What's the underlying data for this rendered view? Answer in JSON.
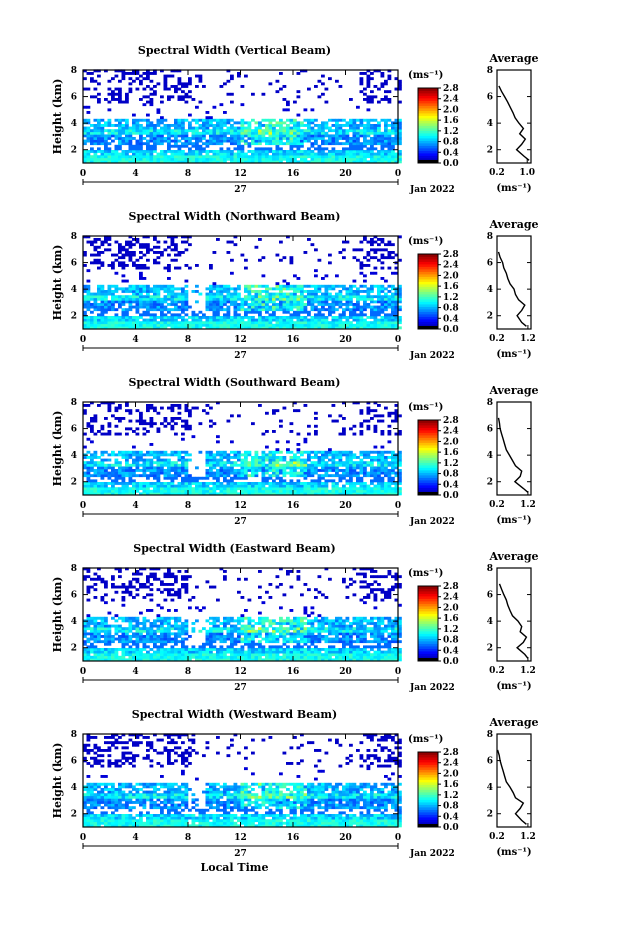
{
  "figure": {
    "xlabel_common": "Local Time"
  },
  "chart_data": [
    {
      "type": "heatmap",
      "title": "Spectral Width (Vertical Beam)",
      "xlabel": "",
      "ylabel": "Height (km)",
      "x_ticks": [
        "0",
        "4",
        "8",
        "12",
        "16",
        "20",
        "0"
      ],
      "y_ticks": [
        "2",
        "4",
        "6",
        "8"
      ],
      "xlim": [
        0,
        24
      ],
      "ylim": [
        1,
        8
      ],
      "date_label": "27",
      "month_label": "Jan 2022",
      "colorbar": {
        "unit": "(ms⁻¹)",
        "ticks": [
          "0.0",
          "0.4",
          "0.8",
          "1.2",
          "1.6",
          "2.0",
          "2.4",
          "2.8"
        ],
        "range": [
          0,
          2.8
        ]
      },
      "profile": {
        "title": "Average",
        "x_ticks": [
          "0.2",
          "1.0"
        ],
        "xlim": [
          0.2,
          1.1
        ],
        "xlabel": "(ms⁻¹)",
        "y_ticks": [
          "2",
          "4",
          "6",
          "8"
        ],
        "heights": [
          1.2,
          1.5,
          2.0,
          2.4,
          2.8,
          3.2,
          3.6,
          4.0,
          4.4,
          4.8,
          5.2,
          5.6,
          6.0,
          6.4,
          6.8
        ],
        "values": [
          1.05,
          0.92,
          0.72,
          0.85,
          0.95,
          0.8,
          0.9,
          0.78,
          0.68,
          0.62,
          0.55,
          0.48,
          0.4,
          0.32,
          0.25
        ]
      }
    },
    {
      "type": "heatmap",
      "title": "Spectral Width (Northward Beam)",
      "xlabel": "",
      "ylabel": "Height (km)",
      "x_ticks": [
        "0",
        "4",
        "8",
        "12",
        "16",
        "20",
        "0"
      ],
      "y_ticks": [
        "2",
        "4",
        "6",
        "8"
      ],
      "xlim": [
        0,
        24
      ],
      "ylim": [
        1,
        8
      ],
      "date_label": "27",
      "month_label": "Jan 2022",
      "colorbar": {
        "unit": "(ms⁻¹)",
        "ticks": [
          "0.0",
          "0.4",
          "0.8",
          "1.2",
          "1.6",
          "2.0",
          "2.4",
          "2.8"
        ],
        "range": [
          0,
          2.8
        ]
      },
      "profile": {
        "title": "Average",
        "x_ticks": [
          "0.2",
          "1.2"
        ],
        "xlim": [
          0.2,
          1.3
        ],
        "xlabel": "(ms⁻¹)",
        "y_ticks": [
          "2",
          "4",
          "6",
          "8"
        ],
        "heights": [
          1.2,
          1.5,
          2.0,
          2.4,
          2.8,
          3.2,
          3.6,
          4.0,
          4.4,
          4.8,
          5.2,
          5.6,
          6.0,
          6.4,
          6.8
        ],
        "values": [
          1.15,
          1.0,
          0.85,
          1.0,
          1.1,
          0.9,
          0.8,
          0.75,
          0.62,
          0.55,
          0.5,
          0.42,
          0.38,
          0.3,
          0.25
        ]
      }
    },
    {
      "type": "heatmap",
      "title": "Spectral Width (Southward Beam)",
      "xlabel": "",
      "ylabel": "Height (km)",
      "x_ticks": [
        "0",
        "4",
        "8",
        "12",
        "16",
        "20",
        "0"
      ],
      "y_ticks": [
        "2",
        "4",
        "6",
        "8"
      ],
      "xlim": [
        0,
        24
      ],
      "ylim": [
        1,
        8
      ],
      "date_label": "27",
      "month_label": "Jan 2022",
      "colorbar": {
        "unit": "(ms⁻¹)",
        "ticks": [
          "0.0",
          "0.4",
          "0.8",
          "1.2",
          "1.6",
          "2.0",
          "2.4",
          "2.8"
        ],
        "range": [
          0,
          2.8
        ]
      },
      "profile": {
        "title": "Average",
        "x_ticks": [
          "0.2",
          "1.2"
        ],
        "xlim": [
          0.2,
          1.3
        ],
        "xlabel": "(ms⁻¹)",
        "y_ticks": [
          "2",
          "4",
          "6",
          "8"
        ],
        "heights": [
          1.2,
          1.5,
          2.0,
          2.4,
          2.8,
          3.2,
          3.6,
          4.0,
          4.4,
          4.8,
          5.2,
          5.6,
          6.0,
          6.4,
          6.8
        ],
        "values": [
          1.2,
          1.05,
          0.78,
          0.95,
          1.0,
          0.8,
          0.7,
          0.6,
          0.5,
          0.45,
          0.4,
          0.35,
          0.3,
          0.28,
          0.25
        ]
      }
    },
    {
      "type": "heatmap",
      "title": "Spectral Width (Eastward Beam)",
      "xlabel": "",
      "ylabel": "Height (km)",
      "x_ticks": [
        "0",
        "4",
        "8",
        "12",
        "16",
        "20",
        "0"
      ],
      "y_ticks": [
        "2",
        "4",
        "6",
        "8"
      ],
      "xlim": [
        0,
        24
      ],
      "ylim": [
        1,
        8
      ],
      "date_label": "27",
      "month_label": "Jan 2022",
      "colorbar": {
        "unit": "(ms⁻¹)",
        "ticks": [
          "0.0",
          "0.4",
          "0.8",
          "1.2",
          "1.6",
          "2.0",
          "2.4",
          "2.8"
        ],
        "range": [
          0,
          2.8
        ]
      },
      "profile": {
        "title": "Average",
        "x_ticks": [
          "0.2",
          "1.2"
        ],
        "xlim": [
          0.2,
          1.3
        ],
        "xlabel": "(ms⁻¹)",
        "y_ticks": [
          "2",
          "4",
          "6",
          "8"
        ],
        "heights": [
          1.2,
          1.5,
          2.0,
          2.4,
          2.8,
          3.2,
          3.6,
          4.0,
          4.4,
          4.8,
          5.2,
          5.6,
          6.0,
          6.4,
          6.8
        ],
        "values": [
          1.2,
          1.1,
          0.85,
          1.05,
          1.15,
          0.95,
          1.0,
          0.88,
          0.7,
          0.62,
          0.55,
          0.5,
          0.42,
          0.35,
          0.28
        ]
      }
    },
    {
      "type": "heatmap",
      "title": "Spectral Width (Westward Beam)",
      "xlabel": "Local Time",
      "ylabel": "Height (km)",
      "x_ticks": [
        "0",
        "4",
        "8",
        "12",
        "16",
        "20",
        "0"
      ],
      "y_ticks": [
        "2",
        "4",
        "6",
        "8"
      ],
      "xlim": [
        0,
        24
      ],
      "ylim": [
        1,
        8
      ],
      "date_label": "27",
      "month_label": "Jan 2022",
      "colorbar": {
        "unit": "(ms⁻¹)",
        "ticks": [
          "0.0",
          "0.4",
          "0.8",
          "1.2",
          "1.6",
          "2.0",
          "2.4",
          "2.8"
        ],
        "range": [
          0,
          2.8
        ]
      },
      "profile": {
        "title": "Average",
        "x_ticks": [
          "0.2",
          "1.2"
        ],
        "xlim": [
          0.2,
          1.3
        ],
        "xlabel": "(ms⁻¹)",
        "y_ticks": [
          "2",
          "4",
          "6",
          "8"
        ],
        "heights": [
          1.2,
          1.5,
          2.0,
          2.4,
          2.8,
          3.2,
          3.6,
          4.0,
          4.4,
          4.8,
          5.2,
          5.6,
          6.0,
          6.4,
          6.8
        ],
        "values": [
          1.15,
          1.0,
          0.8,
          0.95,
          1.05,
          0.8,
          0.72,
          0.62,
          0.5,
          0.45,
          0.4,
          0.35,
          0.3,
          0.27,
          0.22
        ]
      }
    }
  ]
}
